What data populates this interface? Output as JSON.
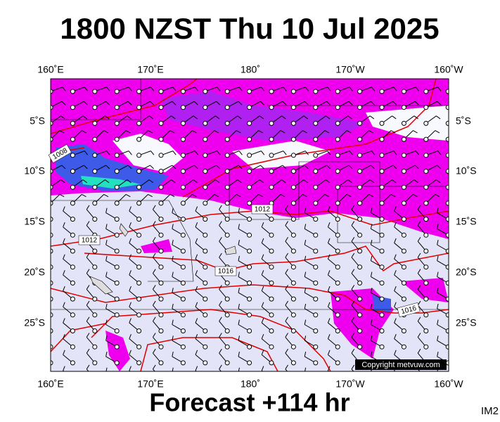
{
  "header": {
    "title": "1800 NZST Thu 10 Jul 2025"
  },
  "map": {
    "top_labels": [
      "160˚E",
      "170˚E",
      "180˚",
      "170˚W",
      "160˚W"
    ],
    "bottom_labels": [
      "160˚E",
      "170˚E",
      "180˚",
      "170˚W",
      "160˚W"
    ],
    "left_labels": [
      "5˚S",
      "10˚S",
      "15˚S",
      "20˚S",
      "25˚S"
    ],
    "right_labels": [
      "5˚S",
      "10˚S",
      "15˚S",
      "20˚S",
      "25˚S"
    ],
    "isobar_labels": [
      "1008",
      "1012",
      "1012",
      "1016",
      "1016"
    ],
    "copyright": "Copyright metvuw.com"
  },
  "footer": {
    "forecast": "Forecast +114 hr",
    "code": "IM2"
  }
}
